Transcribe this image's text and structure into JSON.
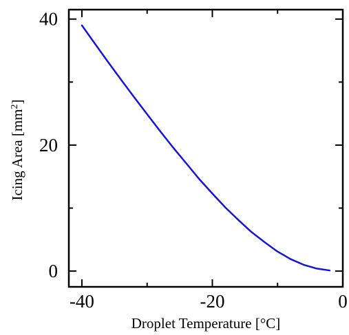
{
  "chart_data": {
    "type": "line",
    "xlabel": "Droplet Temperature [°C]",
    "ylabel_main": "Icing Area [mm",
    "ylabel_sup": "2",
    "ylabel_close": "]",
    "xlim": [
      -42,
      0
    ],
    "ylim": [
      -2.5,
      41.5
    ],
    "xticks_major": [
      -40,
      -20,
      0
    ],
    "xtick_labels": [
      "-40",
      "-20",
      "0"
    ],
    "xticks_minor": [
      -30,
      -10
    ],
    "yticks_major": [
      0,
      20,
      40
    ],
    "ytick_labels": [
      "0",
      "20",
      "40"
    ],
    "yticks_minor": [
      10,
      30
    ],
    "grid": false,
    "series": [
      {
        "color": "#1515d8",
        "x": [
          -40,
          -38,
          -36,
          -34,
          -32,
          -30,
          -28,
          -26,
          -24,
          -22,
          -20,
          -18,
          -16,
          -14,
          -12,
          -10,
          -8,
          -6,
          -4,
          -2
        ],
        "y": [
          39.0,
          36.1,
          33.2,
          30.4,
          27.6,
          24.9,
          22.2,
          19.6,
          17.1,
          14.6,
          12.3,
          10.1,
          8.1,
          6.2,
          4.6,
          3.1,
          1.9,
          1.0,
          0.4,
          0.1
        ]
      }
    ]
  }
}
